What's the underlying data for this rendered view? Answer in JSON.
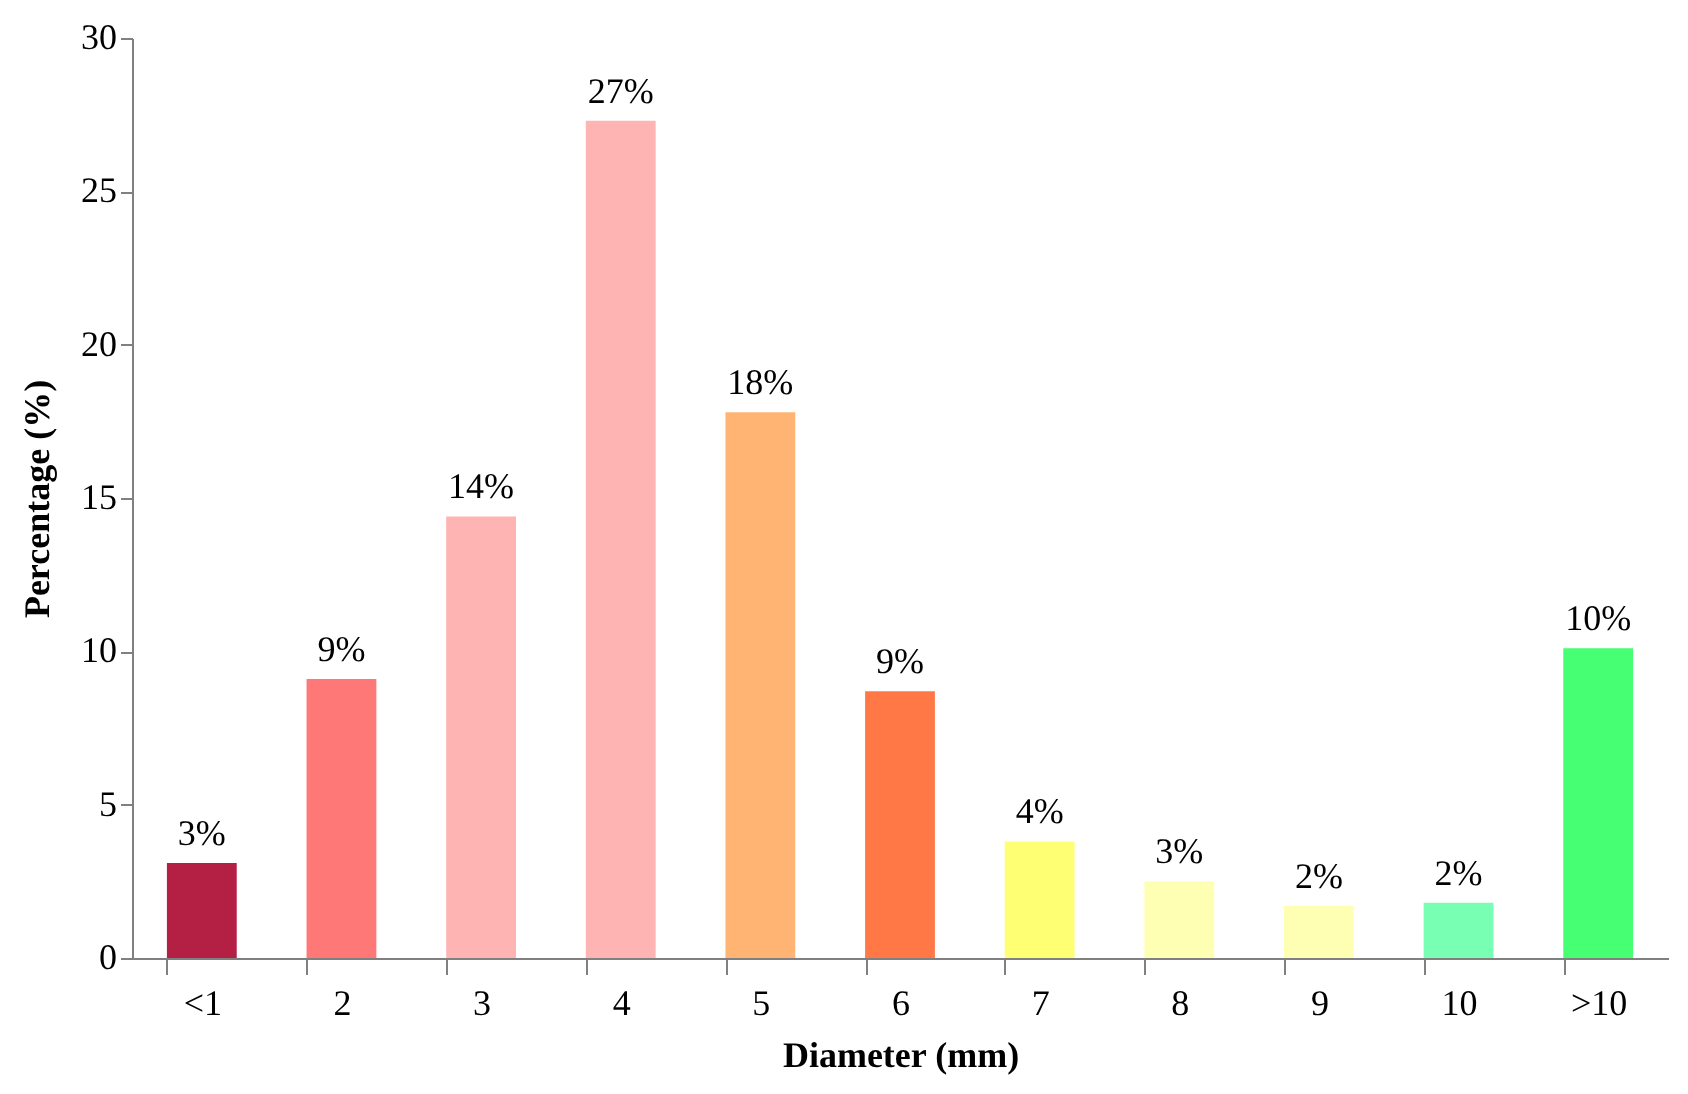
{
  "chart_data": {
    "type": "bar",
    "xlabel": "Diameter (mm)",
    "ylabel": "Percentage (%)",
    "categories": [
      "<1",
      "2",
      "3",
      "4",
      "5",
      "6",
      "7",
      "8",
      "9",
      "10",
      ">10"
    ],
    "values": [
      3.1,
      9.1,
      14.4,
      27.3,
      17.8,
      8.7,
      3.8,
      2.5,
      1.7,
      1.8,
      10.1
    ],
    "colors": [
      "#b41f44",
      "#ff7878",
      "#ffb4b4",
      "#ffb4b4",
      "#ffb473",
      "#ff7846",
      "#ffff73",
      "#ffffb4",
      "#ffffb4",
      "#78ffb4",
      "#46ff73"
    ],
    "value_labels": [
      "3%",
      "9%",
      "14%",
      "27%",
      "18%",
      "9%",
      "4%",
      "3%",
      "2%",
      "2%",
      "10%"
    ],
    "ylim": [
      0,
      30
    ],
    "yticks": [
      0,
      5,
      10,
      15,
      20,
      25,
      30
    ],
    "grid": false
  }
}
